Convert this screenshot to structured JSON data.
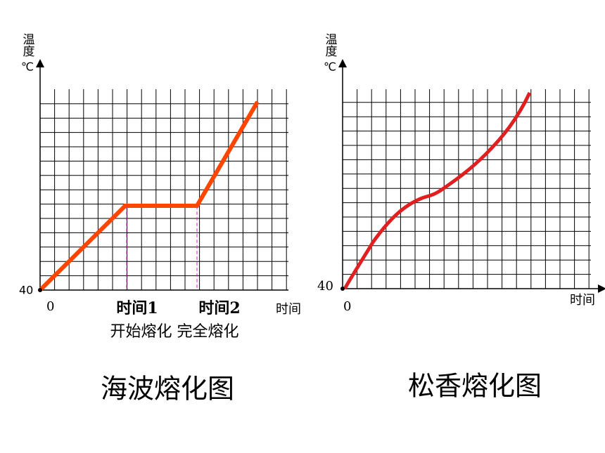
{
  "left": {
    "y_label": "温度",
    "y_unit": "℃",
    "y_origin": "40",
    "x_origin": "0",
    "x_label": "时间",
    "mark1": "时间1",
    "mark2": "时间2",
    "note": "开始熔化 完全熔化",
    "caption": "海波熔化图"
  },
  "right": {
    "y_label": "温度",
    "y_unit": "℃",
    "y_origin": "40",
    "x_origin": "0",
    "x_label": "时间",
    "caption": "松香熔化图"
  }
}
